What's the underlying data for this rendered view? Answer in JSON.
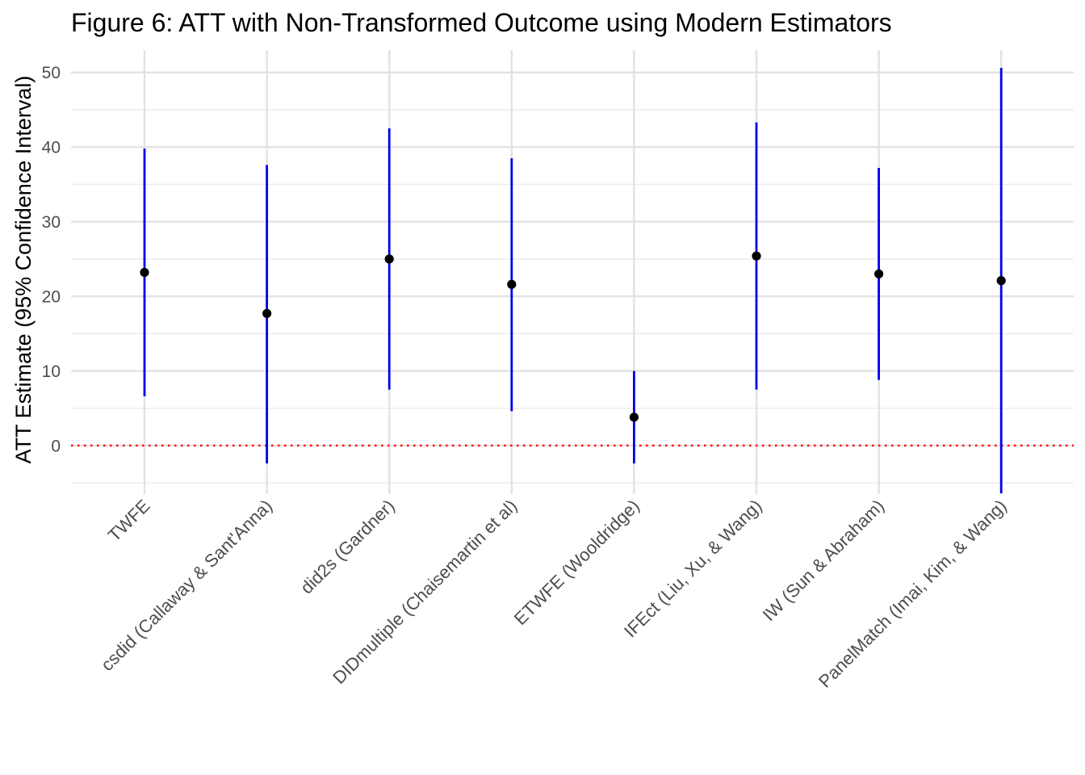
{
  "chart_data": {
    "type": "scatter",
    "title": "Figure 6: ATT with Non-Transformed Outcome using Modern Estimators",
    "xlabel": "",
    "ylabel": "ATT Estimate (95% Confidence Interval)",
    "ylim": [
      -6.5,
      53
    ],
    "yticks": [
      0,
      10,
      20,
      30,
      40,
      50
    ],
    "grid": true,
    "reference_line": {
      "y": 0,
      "style": "dotted",
      "color": "#ff0000"
    },
    "point_color": "#000000",
    "interval_color": "#0000ee",
    "categories": [
      "TWFE",
      "csdid (Callaway & Sant'Anna)",
      "did2s (Gardner)",
      "DIDmultiple (Chaisemartin et al)",
      "ETWFE (Wooldridge)",
      "IFEct (Liu, Xu, & Wang)",
      "IW (Sun & Abraham)",
      "PanelMatch (Imai, Kim, & Wang)"
    ],
    "estimates": [
      23.2,
      17.7,
      25.0,
      21.6,
      3.8,
      25.4,
      23.0,
      22.1
    ],
    "ci_lower": [
      6.6,
      -2.4,
      7.5,
      4.6,
      -2.4,
      7.5,
      8.8,
      -6.4
    ],
    "ci_upper": [
      39.8,
      37.6,
      42.5,
      38.5,
      10.0,
      43.3,
      37.2,
      50.6
    ]
  }
}
